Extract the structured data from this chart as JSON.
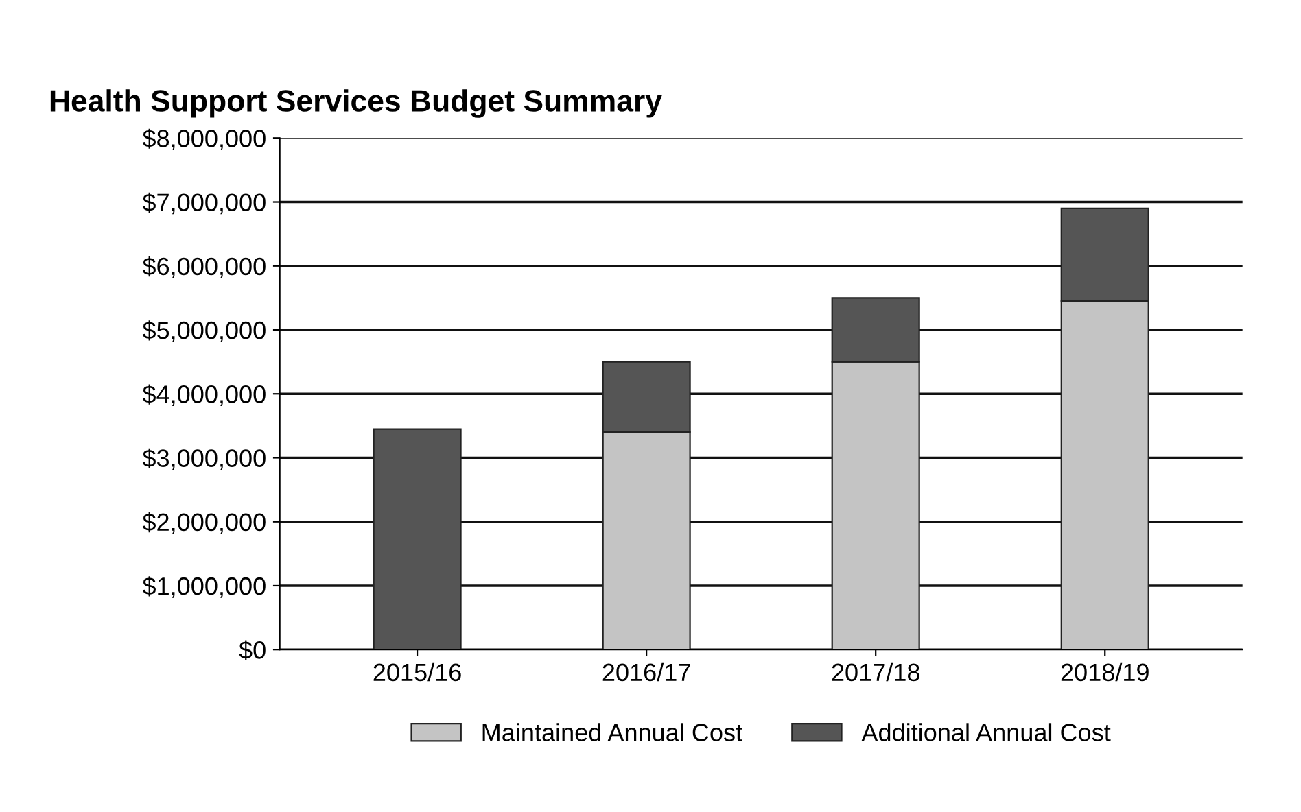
{
  "chart_data": {
    "type": "bar",
    "title": "Health Support Services Budget Summary",
    "stacked": true,
    "categories": [
      "2015/16",
      "2016/17",
      "2017/18",
      "2018/19"
    ],
    "series": [
      {
        "name": "Maintained Annual Cost",
        "color": "#c4c4c4",
        "values": [
          0,
          3400000,
          4500000,
          5450000
        ]
      },
      {
        "name": "Additional Annual Cost",
        "color": "#555555",
        "values": [
          3450000,
          1100000,
          1000000,
          1450000
        ]
      }
    ],
    "ylim": [
      0,
      8000000
    ],
    "yticks": [
      {
        "value": 0,
        "label": "$0"
      },
      {
        "value": 1000000,
        "label": "$1,000,000"
      },
      {
        "value": 2000000,
        "label": "$2,000,000"
      },
      {
        "value": 3000000,
        "label": "$3,000,000"
      },
      {
        "value": 4000000,
        "label": "$4,000,000"
      },
      {
        "value": 5000000,
        "label": "$5,000,000"
      },
      {
        "value": 6000000,
        "label": "$6,000,000"
      },
      {
        "value": 7000000,
        "label": "$7,000,000"
      },
      {
        "value": 8000000,
        "label": "$8,000,000"
      }
    ],
    "grid": "y",
    "legend": "bottom"
  }
}
